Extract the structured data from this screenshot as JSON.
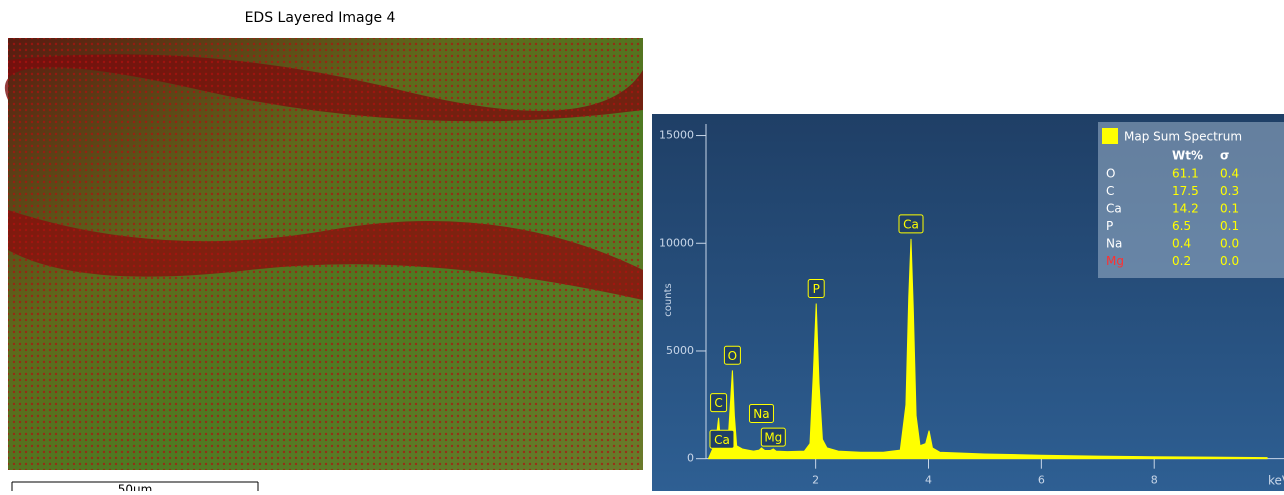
{
  "image_panel": {
    "title": "EDS Layered Image 4",
    "scale_bar": "50µm"
  },
  "chart_data": {
    "type": "area",
    "x_label": "keV",
    "y_label": "counts",
    "xlim": [
      -0.9,
      10.3
    ],
    "xticks": [
      2,
      4,
      6,
      8
    ],
    "ylim": [
      -1500,
      16000
    ],
    "yticks": [
      0,
      5000,
      10000,
      15000
    ],
    "series": [
      {
        "name": "Map Sum Spectrum",
        "color": "#ffff00",
        "x": [
          0.1,
          0.2,
          0.25,
          0.28,
          0.31,
          0.34,
          0.38,
          0.45,
          0.5,
          0.525,
          0.56,
          0.6,
          0.7,
          0.8,
          0.9,
          1.0,
          1.04,
          1.1,
          1.2,
          1.25,
          1.3,
          1.5,
          1.8,
          1.9,
          1.96,
          2.01,
          2.06,
          2.12,
          2.2,
          2.4,
          2.8,
          3.2,
          3.5,
          3.6,
          3.65,
          3.69,
          3.73,
          3.78,
          3.85,
          3.95,
          4.01,
          4.07,
          4.2,
          5,
          6,
          7,
          8,
          9,
          10
        ],
        "values": [
          0,
          600,
          1200,
          1900,
          900,
          700,
          500,
          900,
          3000,
          4100,
          2000,
          600,
          450,
          400,
          350,
          400,
          500,
          380,
          380,
          450,
          350,
          330,
          350,
          700,
          4000,
          7200,
          3500,
          900,
          500,
          350,
          300,
          300,
          400,
          2500,
          7500,
          10200,
          7000,
          2000,
          600,
          700,
          1300,
          500,
          300,
          220,
          160,
          120,
          90,
          70,
          50
        ]
      }
    ],
    "peak_labels": [
      {
        "text": "Ca",
        "x": 0.34,
        "y": 900
      },
      {
        "text": "C",
        "x": 0.28,
        "y": 2600
      },
      {
        "text": "O",
        "x": 0.525,
        "y": 4800
      },
      {
        "text": "Na",
        "x": 1.04,
        "y": 2100
      },
      {
        "text": "Mg",
        "x": 1.25,
        "y": 1000
      },
      {
        "text": "P",
        "x": 2.01,
        "y": 7900
      },
      {
        "text": "Ca",
        "x": 3.69,
        "y": 10900
      }
    ],
    "legend": {
      "headers": [
        "Wt%",
        "σ"
      ],
      "rows": [
        {
          "element": "O",
          "wt": "61.1",
          "sigma": "0.4",
          "color": "#ffffff"
        },
        {
          "element": "C",
          "wt": "17.5",
          "sigma": "0.3",
          "color": "#ffffff"
        },
        {
          "element": "Ca",
          "wt": "14.2",
          "sigma": "0.1",
          "color": "#ffffff"
        },
        {
          "element": "P",
          "wt": "6.5",
          "sigma": "0.1",
          "color": "#ffffff"
        },
        {
          "element": "Na",
          "wt": "0.4",
          "sigma": "0.0",
          "color": "#ffffff"
        },
        {
          "element": "Mg",
          "wt": "0.2",
          "sigma": "0.0",
          "color": "#ff3030"
        }
      ]
    }
  }
}
